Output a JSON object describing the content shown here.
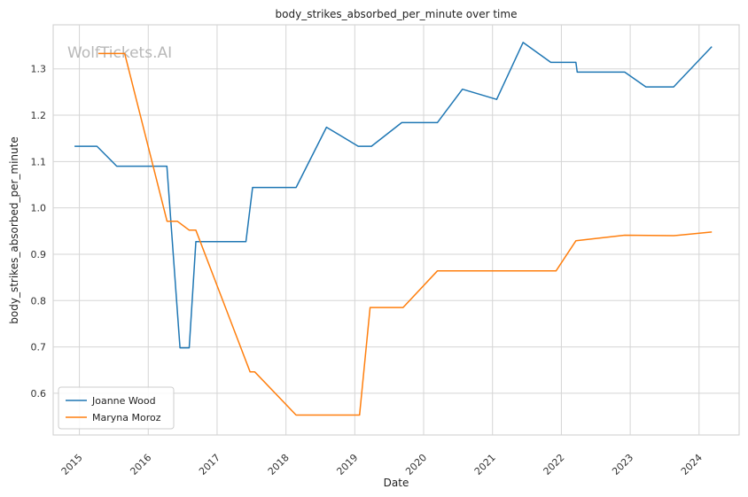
{
  "chart_data": {
    "type": "line",
    "title": "body_strikes_absorbed_per_minute over time",
    "xlabel": "Date",
    "ylabel": "body_strikes_absorbed_per_minute",
    "watermark": "WolfTickets.AI",
    "x_ticks": [
      "2015",
      "2016",
      "2017",
      "2018",
      "2019",
      "2020",
      "2021",
      "2022",
      "2023",
      "2024"
    ],
    "y_ticks": [
      "0.6",
      "0.7",
      "0.8",
      "0.9",
      "1.0",
      "1.1",
      "1.2",
      "1.3"
    ],
    "xlim": [
      "2014-08-15",
      "2024-08-01"
    ],
    "ylim": [
      0.51,
      1.395
    ],
    "grid": true,
    "legend_position": "lower-left",
    "series": [
      {
        "name": "Joanne Wood",
        "color": "#1f77b4",
        "points": [
          [
            "2014-12-06",
            1.133
          ],
          [
            "2015-04-04",
            1.133
          ],
          [
            "2015-07-18",
            1.09
          ],
          [
            "2016-04-09",
            1.09
          ],
          [
            "2016-06-18",
            0.698
          ],
          [
            "2016-08-06",
            0.698
          ],
          [
            "2016-09-10",
            0.927
          ],
          [
            "2017-06-03",
            0.927
          ],
          [
            "2017-07-08",
            1.044
          ],
          [
            "2018-02-24",
            1.044
          ],
          [
            "2018-08-04",
            1.174
          ],
          [
            "2019-01-19",
            1.133
          ],
          [
            "2019-03-30",
            1.133
          ],
          [
            "2019-09-07",
            1.184
          ],
          [
            "2020-03-14",
            1.184
          ],
          [
            "2020-07-25",
            1.256
          ],
          [
            "2021-01-23",
            1.234
          ],
          [
            "2021-06-12",
            1.357
          ],
          [
            "2021-11-06",
            1.314
          ],
          [
            "2022-03-19",
            1.314
          ],
          [
            "2022-03-26",
            1.293
          ],
          [
            "2022-12-03",
            1.293
          ],
          [
            "2023-03-25",
            1.261
          ],
          [
            "2023-08-19",
            1.261
          ],
          [
            "2024-03-09",
            1.348
          ]
        ]
      },
      {
        "name": "Maryna Moroz",
        "color": "#ff7f0e",
        "points": [
          [
            "2015-04-11",
            1.333
          ],
          [
            "2015-08-29",
            1.333
          ],
          [
            "2016-04-10",
            0.971
          ],
          [
            "2016-06-04",
            0.971
          ],
          [
            "2016-08-06",
            0.952
          ],
          [
            "2016-09-10",
            0.952
          ],
          [
            "2017-06-25",
            0.646
          ],
          [
            "2017-07-20",
            0.646
          ],
          [
            "2018-02-24",
            0.553
          ],
          [
            "2019-01-26",
            0.553
          ],
          [
            "2019-03-23",
            0.785
          ],
          [
            "2019-09-14",
            0.785
          ],
          [
            "2020-03-14",
            0.864
          ],
          [
            "2021-12-04",
            0.864
          ],
          [
            "2022-03-19",
            0.929
          ],
          [
            "2022-12-03",
            0.941
          ],
          [
            "2023-08-19",
            0.94
          ],
          [
            "2024-03-09",
            0.948
          ]
        ]
      }
    ]
  }
}
